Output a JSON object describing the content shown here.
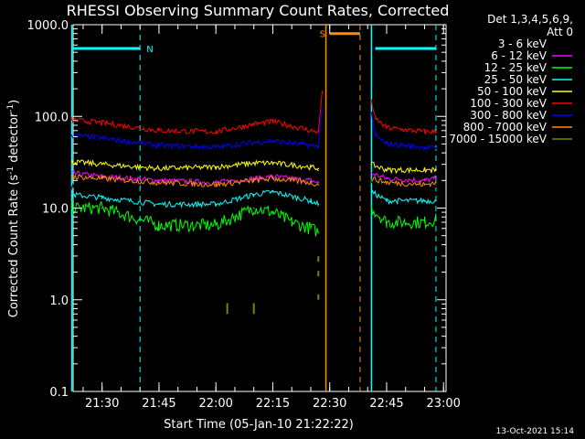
{
  "colors": {
    "background": "#000000",
    "axis": "#ffffff",
    "cyan": "#00ffff",
    "orange": "#ff8c00"
  },
  "chart_data": {
    "type": "line",
    "title": "RHESSI Observing Summary Count Rates, Corrected",
    "xlabel": "Start Time (05-Jan-10 21:22:22)",
    "ylabel": "Corrected Count Rate (s⁻¹ detector⁻¹)",
    "ylabel_main": "Corrected Count Rate (s",
    "ylabel_sup1": "-1",
    "ylabel_mid": " detector",
    "ylabel_sup2": "-1",
    "ylabel_end": ")",
    "yscale": "log",
    "ylim": [
      0.1,
      1000
    ],
    "xlim": [
      "21:22:22",
      "23:00:40"
    ],
    "x_ticks": [
      "21:30",
      "21:45",
      "22:00",
      "22:15",
      "22:30",
      "22:45",
      "23:00"
    ],
    "y_ticks": [
      "0.1",
      "1.0",
      "10.0",
      "100.0",
      "1000.0"
    ],
    "legend_position": "top-right",
    "legend_header": [
      "Det 1,3,4,5,6,9,",
      "Att 0"
    ],
    "timestamp": "13-Oct-2021 15:14",
    "series": [
      {
        "name": "3 - 6 keV",
        "color": "#000000",
        "x": [
          "21:22",
          "21:30",
          "21:45",
          "22:00",
          "22:10",
          "22:15",
          "22:25",
          "22:27",
          "22:41",
          "22:45",
          "22:55",
          "22:58"
        ],
        "values": [
          17,
          16,
          15,
          15,
          17,
          18,
          17,
          16,
          20,
          17,
          16,
          17
        ]
      },
      {
        "name": "6 - 12 keV",
        "color": "#ff00ff",
        "x": [
          "21:22",
          "21:30",
          "21:45",
          "22:00",
          "22:10",
          "22:15",
          "22:25",
          "22:27",
          "22:41",
          "22:45",
          "22:55",
          "22:58"
        ],
        "values": [
          24,
          22,
          20,
          19,
          21,
          22,
          20,
          19,
          24,
          21,
          20,
          21
        ]
      },
      {
        "name": "12 - 25 keV",
        "color": "#00ff00",
        "x": [
          "21:22",
          "21:30",
          "21:45",
          "22:00",
          "22:05",
          "22:10",
          "22:15",
          "22:20",
          "22:25",
          "22:27",
          "22:41",
          "22:45",
          "22:55",
          "22:58"
        ],
        "values": [
          10,
          10,
          6.5,
          6.5,
          8,
          10,
          9,
          7,
          6,
          5.5,
          10,
          7,
          7,
          7.5
        ]
      },
      {
        "name": "25 - 50 keV",
        "color": "#00ffff",
        "x": [
          "21:22",
          "21:30",
          "21:45",
          "22:00",
          "22:10",
          "22:15",
          "22:25",
          "22:27",
          "22:41",
          "22:45",
          "22:55",
          "22:58"
        ],
        "values": [
          14,
          13,
          11,
          11,
          14,
          15,
          12,
          11,
          15,
          12,
          12,
          12
        ]
      },
      {
        "name": "50 - 100 keV",
        "color": "#ffff00",
        "x": [
          "21:22",
          "21:30",
          "21:45",
          "22:00",
          "22:10",
          "22:15",
          "22:25",
          "22:27",
          "22:41",
          "22:45",
          "22:55",
          "22:58"
        ],
        "values": [
          32,
          30,
          27,
          28,
          31,
          31,
          28,
          27,
          30,
          26,
          26,
          26
        ]
      },
      {
        "name": "100 - 300 keV",
        "color": "#ff0000",
        "x": [
          "21:22",
          "21:30",
          "21:45",
          "22:00",
          "22:10",
          "22:15",
          "22:25",
          "22:27",
          "22:28",
          "22:41",
          "22:42",
          "22:45",
          "22:55",
          "22:58"
        ],
        "values": [
          92,
          85,
          70,
          68,
          82,
          88,
          70,
          68,
          180,
          150,
          95,
          75,
          68,
          68
        ]
      },
      {
        "name": "300 - 800 keV",
        "color": "#0000ff",
        "x": [
          "21:22",
          "21:30",
          "21:45",
          "22:00",
          "22:10",
          "22:15",
          "22:25",
          "22:27",
          "22:28",
          "22:41",
          "22:42",
          "22:45",
          "22:55",
          "22:58"
        ],
        "values": [
          62,
          58,
          48,
          46,
          52,
          54,
          48,
          47,
          125,
          110,
          62,
          50,
          46,
          45
        ]
      },
      {
        "name": "800 - 7000 keV",
        "color": "#ff8c00",
        "x": [
          "21:22",
          "21:30",
          "21:45",
          "22:00",
          "22:10",
          "22:15",
          "22:25",
          "22:27",
          "22:41",
          "22:45",
          "22:55",
          "22:58"
        ],
        "values": [
          22,
          21,
          19,
          18,
          20,
          21,
          19,
          18,
          21,
          19,
          18,
          19
        ]
      },
      {
        "name": "7000 - 15000 keV",
        "color": "#808000",
        "x": [
          "22:03",
          "22:03",
          "22:10",
          "22:10",
          "22:27",
          "22:27",
          "22:27"
        ],
        "values": [
          0.7,
          0.8,
          0.7,
          0.8,
          1.0,
          1.8,
          2.6
        ]
      }
    ],
    "annotations": [
      {
        "type": "bar",
        "label": "N",
        "color": "#00ffff",
        "x_start": "21:22",
        "x_end": "21:40",
        "y": 550
      },
      {
        "type": "bar",
        "label": "",
        "color": "#00ffff",
        "x_start": "22:42",
        "x_end": "22:58",
        "y": 550
      },
      {
        "type": "bar",
        "label": "S",
        "color": "#ff8c00",
        "x_start": "22:30",
        "x_end": "22:38",
        "y": 800
      },
      {
        "type": "vline",
        "style": "solid",
        "color": "#00ffff",
        "x": "21:22"
      },
      {
        "type": "vline",
        "style": "dashed",
        "color": "#00ffff",
        "x": "21:40"
      },
      {
        "type": "vline",
        "style": "solid",
        "color": "#00ffff",
        "x": "22:41"
      },
      {
        "type": "vline",
        "style": "dashed",
        "color": "#00ffff",
        "x": "22:58"
      },
      {
        "type": "vline",
        "style": "solid",
        "color": "#ff8c00",
        "x": "22:29"
      },
      {
        "type": "vline",
        "style": "dashed",
        "color": "#ff8c00",
        "x": "22:38"
      }
    ]
  }
}
